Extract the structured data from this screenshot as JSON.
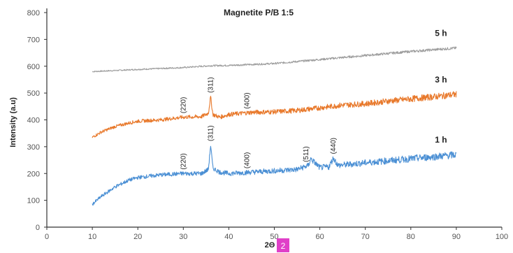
{
  "chart_data": {
    "type": "line",
    "title": "Magnetite P/B 1:5",
    "xlabel": "2Θ",
    "ylabel": "Intensity (a.u)",
    "xlim": [
      0,
      100
    ],
    "ylim": [
      0,
      800
    ],
    "xticks": [
      "0",
      "10",
      "20",
      "30",
      "40",
      "50",
      "60",
      "70",
      "80",
      "90",
      "100"
    ],
    "yticks": [
      "0",
      "100",
      "200",
      "300",
      "400",
      "500",
      "600",
      "700",
      "800"
    ],
    "grid": false,
    "legend": "inline-labels",
    "series": [
      {
        "name": "5 h",
        "color": "#9e9e9e",
        "x": [
          10,
          20,
          30,
          36,
          40,
          50,
          60,
          70,
          80,
          90
        ],
        "y": [
          580,
          588,
          595,
          602,
          603,
          610,
          625,
          640,
          655,
          668
        ],
        "peaks": []
      },
      {
        "name": "3 h",
        "color": "#e8782a",
        "x": [
          10,
          12,
          15,
          18,
          20,
          25,
          30,
          34,
          35.5,
          36,
          36.5,
          38,
          40,
          45,
          50,
          55,
          60,
          65,
          70,
          75,
          80,
          85,
          90
        ],
        "y": [
          335,
          355,
          375,
          388,
          395,
          400,
          410,
          412,
          425,
          485,
          420,
          410,
          420,
          428,
          430,
          435,
          445,
          455,
          460,
          470,
          478,
          486,
          495
        ],
        "peaks": [
          {
            "label": "(220)",
            "x": 30
          },
          {
            "label": "(311)",
            "x": 36
          },
          {
            "label": "(400)",
            "x": 44
          }
        ]
      },
      {
        "name": "1 h",
        "color": "#4a8fd4",
        "x": [
          10,
          12,
          15,
          18,
          20,
          25,
          30,
          34,
          35.5,
          36,
          36.5,
          38,
          40,
          45,
          50,
          55,
          57.5,
          58,
          60,
          62,
          63,
          64,
          70,
          80,
          90
        ],
        "y": [
          85,
          115,
          150,
          175,
          185,
          195,
          200,
          200,
          215,
          305,
          220,
          205,
          200,
          205,
          210,
          215,
          230,
          255,
          222,
          225,
          258,
          230,
          240,
          255,
          270
        ],
        "peaks": [
          {
            "label": "(220)",
            "x": 30
          },
          {
            "label": "(311)",
            "x": 36
          },
          {
            "label": "(400)",
            "x": 44
          },
          {
            "label": "(511)",
            "x": 57
          },
          {
            "label": "(440)",
            "x": 63
          }
        ]
      }
    ]
  },
  "overlay_badge": {
    "text": "2",
    "color": "#e040c8"
  }
}
